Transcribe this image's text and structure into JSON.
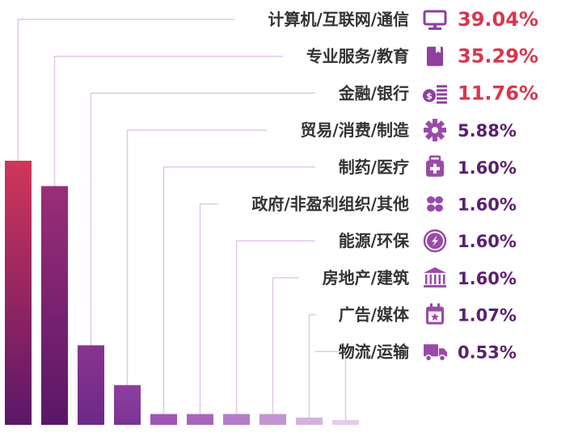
{
  "chart_data": {
    "type": "bar",
    "title": "",
    "xlabel": "",
    "ylabel": "",
    "categories": [
      "计算机/互联网/通信",
      "专业服务/教育",
      "金融/银行",
      "贸易/消费/制造",
      "制药/医疗",
      "政府/非盈利组织/其他",
      "能源/环保",
      "房地产/建筑",
      "广告/媒体",
      "物流/运输"
    ],
    "values": [
      39.04,
      35.29,
      11.76,
      5.88,
      1.6,
      1.6,
      1.6,
      1.6,
      1.07,
      0.53
    ],
    "value_labels": [
      "39.04%",
      "35.29%",
      "11.76%",
      "5.88%",
      "1.60%",
      "1.60%",
      "1.60%",
      "1.60%",
      "1.07%",
      "0.53%"
    ],
    "icons": [
      "monitor-icon",
      "book-icon",
      "money-icon",
      "gear-icon",
      "medkit-icon",
      "clover-icon",
      "energy-icon",
      "bank-icon",
      "calendar-star-icon",
      "truck-icon"
    ],
    "ylim": [
      0,
      39.04
    ],
    "grid": false,
    "legend": "none"
  },
  "colors": {
    "bar_top": [
      "#d0365a",
      "#9a2e78",
      "#8a3390",
      "#8e3fa0",
      "#9f55b5",
      "#a766bb",
      "#b27dc8",
      "#c295d2",
      "#d3b2e0",
      "#e3ccec"
    ],
    "bar_bottom": [
      "#5a1768",
      "#5a1768",
      "#6c2a88",
      "#7a3496",
      "#9f55b5",
      "#a766bb",
      "#b27dc8",
      "#c295d2",
      "#d3b2e0",
      "#e3ccec"
    ],
    "icon": [
      "#8e3fa0",
      "#8e3fa0",
      "#8e3fa0",
      "#9a4aa8",
      "#9a4aa8",
      "#9a4aa8",
      "#9a4aa8",
      "#9a4aa8",
      "#9a4aa8",
      "#9a4aa8"
    ],
    "pct": [
      "#d7374f",
      "#d7374f",
      "#d7374f",
      "#5b2070",
      "#5b2070",
      "#5b2070",
      "#5b2070",
      "#5b2070",
      "#5b2070",
      "#5b2070"
    ],
    "leader": "#e1c7ea"
  }
}
